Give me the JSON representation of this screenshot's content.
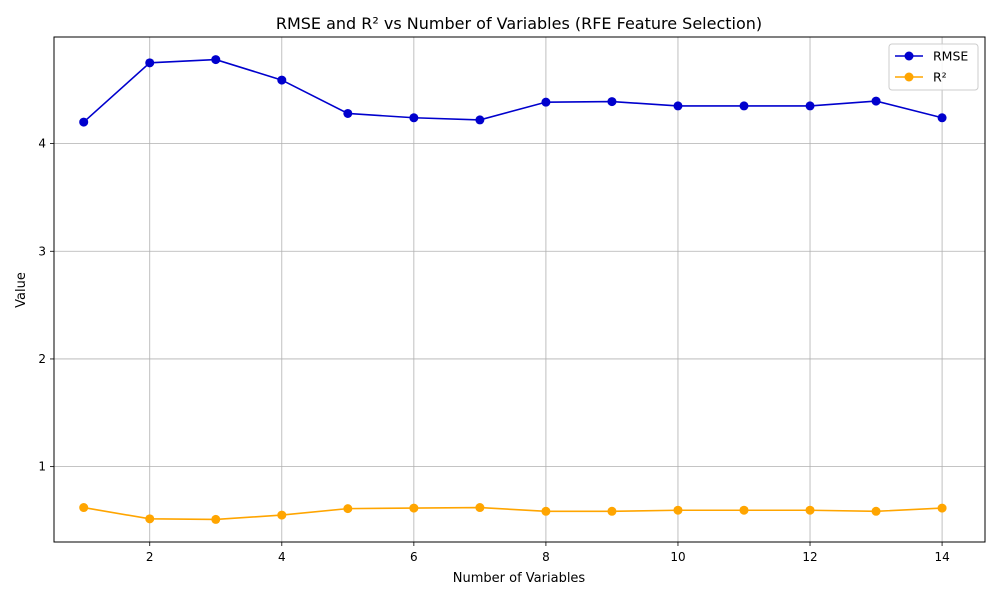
{
  "chart_data": {
    "type": "line",
    "title": "RMSE and R² vs Number of Variables (RFE Feature Selection)",
    "xlabel": "Number of Variables",
    "ylabel": "Value",
    "x": [
      1,
      2,
      3,
      4,
      5,
      6,
      7,
      8,
      9,
      10,
      11,
      12,
      13,
      14
    ],
    "xlim": [
      0.55,
      14.65
    ],
    "ylim": [
      0.3,
      4.99
    ],
    "xticks": [
      2,
      4,
      6,
      8,
      10,
      12,
      14
    ],
    "yticks": [
      1,
      2,
      3,
      4
    ],
    "grid": true,
    "legend": "top-right",
    "series": [
      {
        "name": "RMSE",
        "color": "#0000cd",
        "marker": "circle",
        "values": [
          4.2,
          4.75,
          4.78,
          4.59,
          4.28,
          4.24,
          4.22,
          4.385,
          4.39,
          4.35,
          4.35,
          4.35,
          4.395,
          4.24
        ]
      },
      {
        "name": "R²",
        "color": "#ffa500",
        "marker": "circle",
        "values": [
          0.62,
          0.515,
          0.51,
          0.55,
          0.61,
          0.615,
          0.62,
          0.585,
          0.585,
          0.595,
          0.595,
          0.595,
          0.585,
          0.615
        ]
      }
    ]
  }
}
